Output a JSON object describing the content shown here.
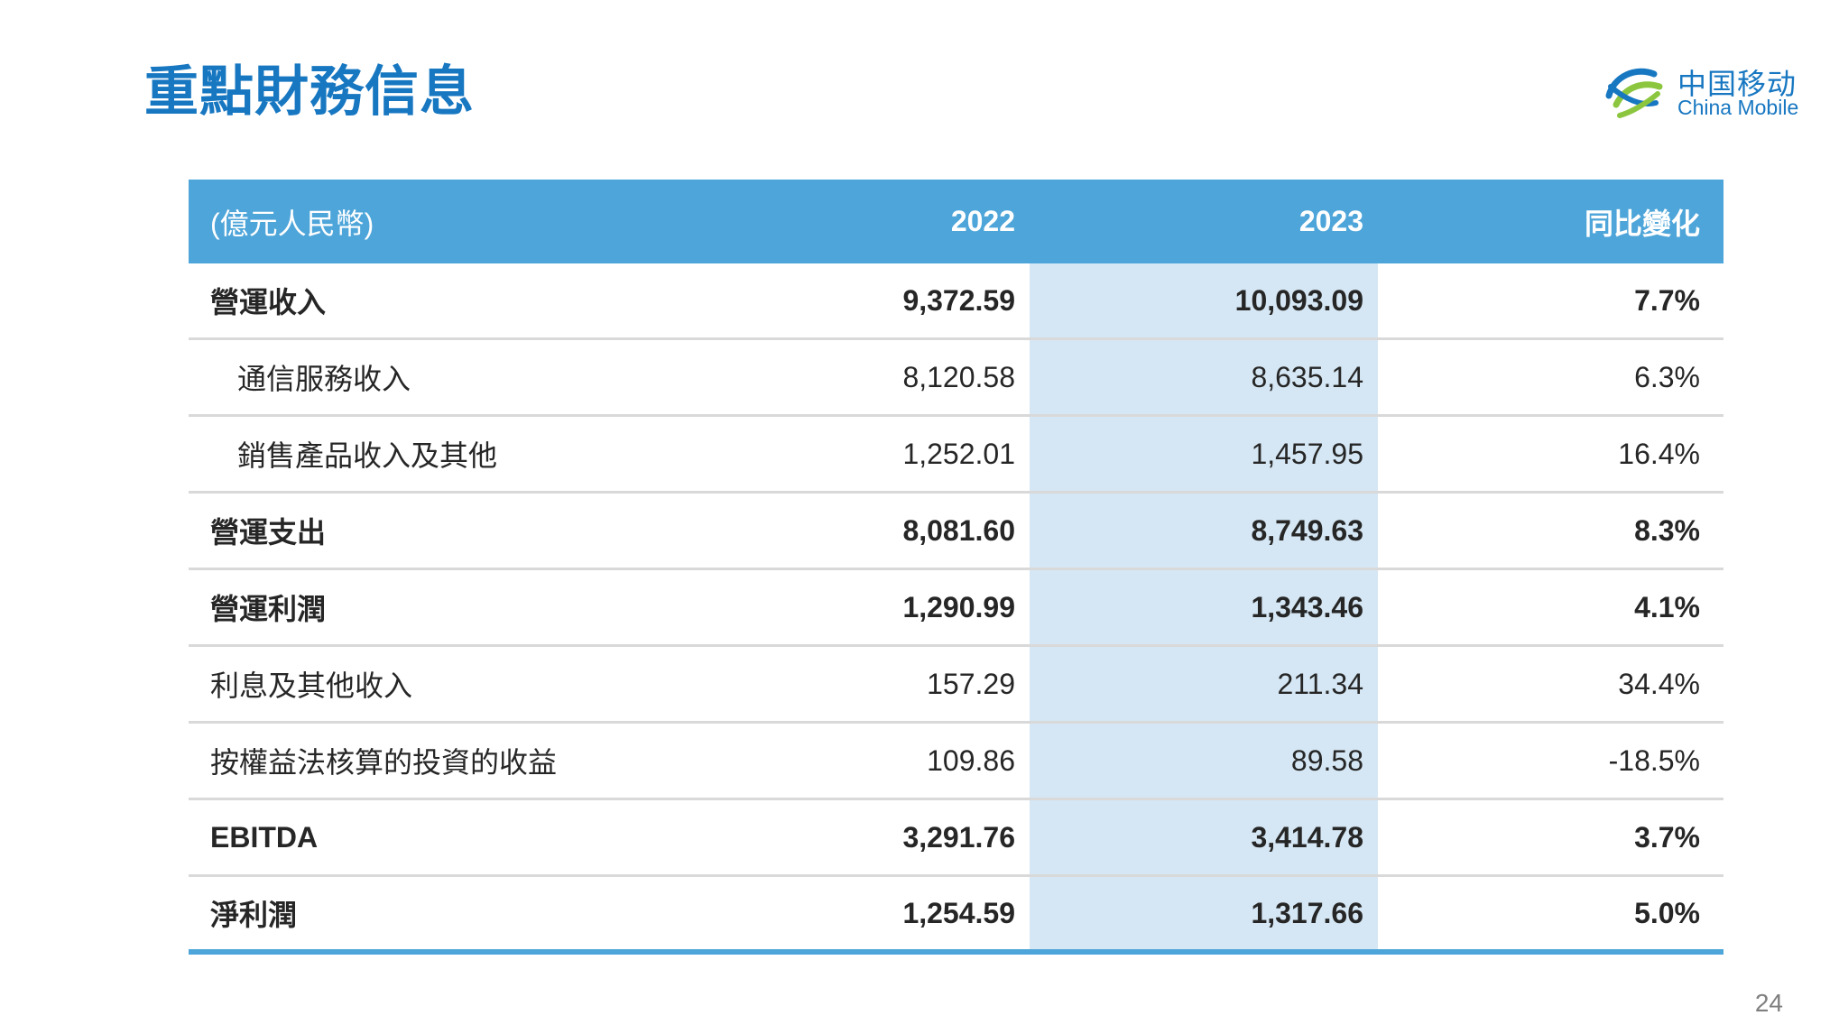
{
  "title": "重點財務信息",
  "logo": {
    "name_cn": "中国移动",
    "name_en": "China Mobile",
    "icon": "china-mobile-logo-icon",
    "color": "#1777c1"
  },
  "colors": {
    "title": "#1777c1",
    "header_bg": "#4ea5d9",
    "highlight_column": "#d5e7f4",
    "row_divider": "#d9d9d9"
  },
  "table": {
    "header": {
      "unit": "(億元人民幣)",
      "year_2022": "2022",
      "year_2023": "2023",
      "yoy": "同比變化"
    },
    "rows": [
      {
        "label": "營運收入",
        "v2022": "9,372.59",
        "v2023": "10,093.09",
        "yoy": "7.7%",
        "bold": true,
        "indent": false
      },
      {
        "label": "通信服務收入",
        "v2022": "8,120.58",
        "v2023": "8,635.14",
        "yoy": "6.3%",
        "bold": false,
        "indent": true
      },
      {
        "label": "銷售產品收入及其他",
        "v2022": "1,252.01",
        "v2023": "1,457.95",
        "yoy": "16.4%",
        "bold": false,
        "indent": true
      },
      {
        "label": "營運支出",
        "v2022": "8,081.60",
        "v2023": "8,749.63",
        "yoy": "8.3%",
        "bold": true,
        "indent": false
      },
      {
        "label": "營運利潤",
        "v2022": "1,290.99",
        "v2023": "1,343.46",
        "yoy": "4.1%",
        "bold": true,
        "indent": false
      },
      {
        "label": "利息及其他收入",
        "v2022": "157.29",
        "v2023": "211.34",
        "yoy": "34.4%",
        "bold": false,
        "indent": false
      },
      {
        "label": "按權益法核算的投資的收益",
        "v2022": "109.86",
        "v2023": "89.58",
        "yoy": "-18.5%",
        "bold": false,
        "indent": false
      },
      {
        "label": "EBITDA",
        "v2022": "3,291.76",
        "v2023": "3,414.78",
        "yoy": "3.7%",
        "bold": true,
        "indent": false
      },
      {
        "label": "淨利潤",
        "v2022": "1,254.59",
        "v2023": "1,317.66",
        "yoy": "5.0%",
        "bold": true,
        "indent": false
      }
    ]
  },
  "page_number": "24"
}
